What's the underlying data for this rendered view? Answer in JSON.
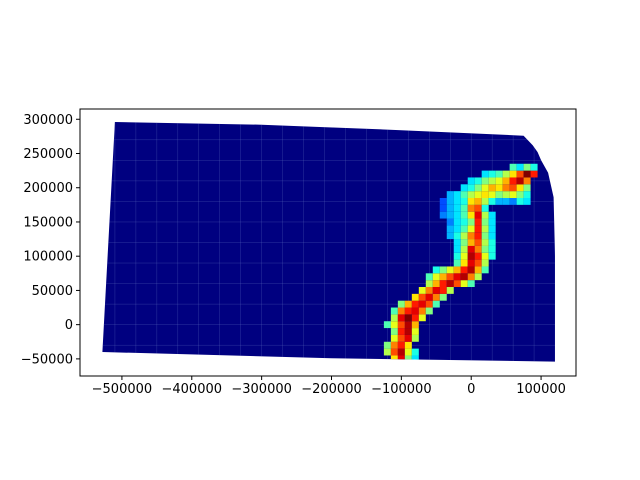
{
  "chart_data": {
    "type": "heatmap",
    "title": "",
    "xlabel": "",
    "ylabel": "",
    "xlim": [
      -560000,
      150000
    ],
    "ylim": [
      -75000,
      315000
    ],
    "x_ticks": [
      -500000,
      -400000,
      -300000,
      -200000,
      -100000,
      0,
      100000
    ],
    "x_tick_labels": [
      "−500000",
      "−400000",
      "−300000",
      "−200000",
      "−100000",
      "0",
      "100000"
    ],
    "y_ticks": [
      -50000,
      0,
      50000,
      100000,
      150000,
      200000,
      250000,
      300000
    ],
    "y_tick_labels": [
      "−50000",
      "0",
      "50000",
      "100000",
      "150000",
      "200000",
      "250000",
      "300000"
    ],
    "grid": false,
    "colormap": "jet",
    "background_color": "#000080",
    "boundary_color": "#5f6fc0",
    "region_outline": [
      [
        -510000,
        296000
      ],
      [
        -300000,
        292000
      ],
      [
        -100000,
        284000
      ],
      [
        75000,
        276000
      ],
      [
        88000,
        262000
      ],
      [
        95000,
        252000
      ],
      [
        100000,
        240000
      ],
      [
        110000,
        222000
      ],
      [
        118000,
        186000
      ],
      [
        120000,
        100000
      ],
      [
        120000,
        -54000
      ],
      [
        -200000,
        -49000
      ],
      [
        -528000,
        -40000
      ]
    ],
    "cell_size": 10000,
    "cells": [
      {
        "x": -110000,
        "y": -50000,
        "v": 0.65
      },
      {
        "x": -100000,
        "y": -50000,
        "v": 0.9
      },
      {
        "x": -90000,
        "y": -50000,
        "v": 0.5
      },
      {
        "x": -80000,
        "y": -50000,
        "v": 0.35
      },
      {
        "x": -120000,
        "y": -40000,
        "v": 0.55
      },
      {
        "x": -110000,
        "y": -40000,
        "v": 0.8
      },
      {
        "x": -100000,
        "y": -40000,
        "v": 0.95
      },
      {
        "x": -90000,
        "y": -40000,
        "v": 0.6
      },
      {
        "x": -80000,
        "y": -40000,
        "v": 0.4
      },
      {
        "x": -120000,
        "y": -30000,
        "v": 0.5
      },
      {
        "x": -110000,
        "y": -30000,
        "v": 0.75
      },
      {
        "x": -100000,
        "y": -30000,
        "v": 0.85
      },
      {
        "x": -90000,
        "y": -30000,
        "v": 0.65
      },
      {
        "x": -110000,
        "y": -20000,
        "v": 0.6
      },
      {
        "x": -100000,
        "y": -20000,
        "v": 0.8
      },
      {
        "x": -90000,
        "y": -20000,
        "v": 0.9
      },
      {
        "x": -80000,
        "y": -20000,
        "v": 0.55
      },
      {
        "x": -110000,
        "y": -10000,
        "v": 0.5
      },
      {
        "x": -100000,
        "y": -10000,
        "v": 0.85
      },
      {
        "x": -90000,
        "y": -10000,
        "v": 0.95
      },
      {
        "x": -80000,
        "y": -10000,
        "v": 0.6
      },
      {
        "x": -120000,
        "y": 0,
        "v": 0.45
      },
      {
        "x": -110000,
        "y": 0,
        "v": 0.6
      },
      {
        "x": -100000,
        "y": 0,
        "v": 0.8
      },
      {
        "x": -90000,
        "y": 0,
        "v": 0.95
      },
      {
        "x": -80000,
        "y": 0,
        "v": 0.7
      },
      {
        "x": -110000,
        "y": 10000,
        "v": 0.55
      },
      {
        "x": -100000,
        "y": 10000,
        "v": 0.9
      },
      {
        "x": -90000,
        "y": 10000,
        "v": 1.0
      },
      {
        "x": -80000,
        "y": 10000,
        "v": 0.85
      },
      {
        "x": -70000,
        "y": 10000,
        "v": 0.6
      },
      {
        "x": -110000,
        "y": 20000,
        "v": 0.45
      },
      {
        "x": -100000,
        "y": 20000,
        "v": 0.75
      },
      {
        "x": -90000,
        "y": 20000,
        "v": 0.85
      },
      {
        "x": -80000,
        "y": 20000,
        "v": 0.9
      },
      {
        "x": -70000,
        "y": 20000,
        "v": 0.75
      },
      {
        "x": -60000,
        "y": 20000,
        "v": 0.5
      },
      {
        "x": -100000,
        "y": 30000,
        "v": 0.5
      },
      {
        "x": -90000,
        "y": 30000,
        "v": 0.7
      },
      {
        "x": -80000,
        "y": 30000,
        "v": 0.85
      },
      {
        "x": -70000,
        "y": 30000,
        "v": 0.9
      },
      {
        "x": -60000,
        "y": 30000,
        "v": 0.8
      },
      {
        "x": -50000,
        "y": 30000,
        "v": 0.45
      },
      {
        "x": -80000,
        "y": 40000,
        "v": 0.65
      },
      {
        "x": -70000,
        "y": 40000,
        "v": 0.8
      },
      {
        "x": -60000,
        "y": 40000,
        "v": 0.9
      },
      {
        "x": -50000,
        "y": 40000,
        "v": 0.75
      },
      {
        "x": -40000,
        "y": 40000,
        "v": 0.5
      },
      {
        "x": -70000,
        "y": 50000,
        "v": 0.6
      },
      {
        "x": -60000,
        "y": 50000,
        "v": 0.75
      },
      {
        "x": -50000,
        "y": 50000,
        "v": 0.9
      },
      {
        "x": -40000,
        "y": 50000,
        "v": 0.85
      },
      {
        "x": -30000,
        "y": 50000,
        "v": 0.55
      },
      {
        "x": -60000,
        "y": 60000,
        "v": 0.55
      },
      {
        "x": -50000,
        "y": 60000,
        "v": 0.7
      },
      {
        "x": -40000,
        "y": 60000,
        "v": 0.85
      },
      {
        "x": -30000,
        "y": 60000,
        "v": 0.95
      },
      {
        "x": -20000,
        "y": 60000,
        "v": 0.8
      },
      {
        "x": -10000,
        "y": 60000,
        "v": 0.6
      },
      {
        "x": 0,
        "y": 60000,
        "v": 0.45
      },
      {
        "x": -60000,
        "y": 70000,
        "v": 0.45
      },
      {
        "x": -50000,
        "y": 70000,
        "v": 0.6
      },
      {
        "x": -40000,
        "y": 70000,
        "v": 0.7
      },
      {
        "x": -30000,
        "y": 70000,
        "v": 0.8
      },
      {
        "x": -20000,
        "y": 70000,
        "v": 0.9
      },
      {
        "x": -10000,
        "y": 70000,
        "v": 0.95
      },
      {
        "x": 0,
        "y": 70000,
        "v": 0.75
      },
      {
        "x": 10000,
        "y": 70000,
        "v": 0.55
      },
      {
        "x": -50000,
        "y": 80000,
        "v": 0.4
      },
      {
        "x": -40000,
        "y": 80000,
        "v": 0.5
      },
      {
        "x": -30000,
        "y": 80000,
        "v": 0.6
      },
      {
        "x": -20000,
        "y": 80000,
        "v": 0.7
      },
      {
        "x": -10000,
        "y": 80000,
        "v": 0.85
      },
      {
        "x": 0,
        "y": 80000,
        "v": 0.95
      },
      {
        "x": 10000,
        "y": 80000,
        "v": 0.7
      },
      {
        "x": 20000,
        "y": 80000,
        "v": 0.45
      },
      {
        "x": -20000,
        "y": 90000,
        "v": 0.45
      },
      {
        "x": -10000,
        "y": 90000,
        "v": 0.65
      },
      {
        "x": 0,
        "y": 90000,
        "v": 0.9
      },
      {
        "x": 10000,
        "y": 90000,
        "v": 0.8
      },
      {
        "x": 20000,
        "y": 90000,
        "v": 0.55
      },
      {
        "x": -20000,
        "y": 100000,
        "v": 0.4
      },
      {
        "x": -10000,
        "y": 100000,
        "v": 0.6
      },
      {
        "x": 0,
        "y": 100000,
        "v": 0.95
      },
      {
        "x": 10000,
        "y": 100000,
        "v": 0.85
      },
      {
        "x": 20000,
        "y": 100000,
        "v": 0.6
      },
      {
        "x": 30000,
        "y": 100000,
        "v": 0.4
      },
      {
        "x": -20000,
        "y": 110000,
        "v": 0.35
      },
      {
        "x": -10000,
        "y": 110000,
        "v": 0.55
      },
      {
        "x": 0,
        "y": 110000,
        "v": 0.9
      },
      {
        "x": 10000,
        "y": 110000,
        "v": 0.75
      },
      {
        "x": 20000,
        "y": 110000,
        "v": 0.5
      },
      {
        "x": 30000,
        "y": 110000,
        "v": 0.4
      },
      {
        "x": -20000,
        "y": 120000,
        "v": 0.35
      },
      {
        "x": -10000,
        "y": 120000,
        "v": 0.5
      },
      {
        "x": 0,
        "y": 120000,
        "v": 0.7
      },
      {
        "x": 10000,
        "y": 120000,
        "v": 0.8
      },
      {
        "x": 20000,
        "y": 120000,
        "v": 0.55
      },
      {
        "x": 30000,
        "y": 120000,
        "v": 0.4
      },
      {
        "x": -30000,
        "y": 130000,
        "v": 0.3
      },
      {
        "x": -20000,
        "y": 130000,
        "v": 0.4
      },
      {
        "x": -10000,
        "y": 130000,
        "v": 0.55
      },
      {
        "x": 0,
        "y": 130000,
        "v": 0.75
      },
      {
        "x": 10000,
        "y": 130000,
        "v": 0.85
      },
      {
        "x": 20000,
        "y": 130000,
        "v": 0.5
      },
      {
        "x": 30000,
        "y": 130000,
        "v": 0.35
      },
      {
        "x": -30000,
        "y": 140000,
        "v": 0.3
      },
      {
        "x": -20000,
        "y": 140000,
        "v": 0.35
      },
      {
        "x": -10000,
        "y": 140000,
        "v": 0.45
      },
      {
        "x": 0,
        "y": 140000,
        "v": 0.6
      },
      {
        "x": 10000,
        "y": 140000,
        "v": 0.85
      },
      {
        "x": 20000,
        "y": 140000,
        "v": 0.55
      },
      {
        "x": 30000,
        "y": 140000,
        "v": 0.35
      },
      {
        "x": -30000,
        "y": 150000,
        "v": 0.25
      },
      {
        "x": -20000,
        "y": 150000,
        "v": 0.35
      },
      {
        "x": -10000,
        "y": 150000,
        "v": 0.4
      },
      {
        "x": 0,
        "y": 150000,
        "v": 0.5
      },
      {
        "x": 10000,
        "y": 150000,
        "v": 0.85
      },
      {
        "x": 20000,
        "y": 150000,
        "v": 0.5
      },
      {
        "x": 30000,
        "y": 150000,
        "v": 0.35
      },
      {
        "x": -40000,
        "y": 160000,
        "v": 0.25
      },
      {
        "x": -30000,
        "y": 160000,
        "v": 0.3
      },
      {
        "x": -20000,
        "y": 160000,
        "v": 0.35
      },
      {
        "x": -10000,
        "y": 160000,
        "v": 0.45
      },
      {
        "x": 0,
        "y": 160000,
        "v": 0.65
      },
      {
        "x": 10000,
        "y": 160000,
        "v": 0.9
      },
      {
        "x": 20000,
        "y": 160000,
        "v": 0.55
      },
      {
        "x": 30000,
        "y": 160000,
        "v": 0.35
      },
      {
        "x": -40000,
        "y": 170000,
        "v": 0.2
      },
      {
        "x": -30000,
        "y": 170000,
        "v": 0.3
      },
      {
        "x": -20000,
        "y": 170000,
        "v": 0.35
      },
      {
        "x": -10000,
        "y": 170000,
        "v": 0.45
      },
      {
        "x": 0,
        "y": 170000,
        "v": 0.75
      },
      {
        "x": 10000,
        "y": 170000,
        "v": 0.8
      },
      {
        "x": 20000,
        "y": 170000,
        "v": 0.4
      },
      {
        "x": -40000,
        "y": 180000,
        "v": 0.2
      },
      {
        "x": -30000,
        "y": 180000,
        "v": 0.3
      },
      {
        "x": -20000,
        "y": 180000,
        "v": 0.35
      },
      {
        "x": -10000,
        "y": 180000,
        "v": 0.4
      },
      {
        "x": 0,
        "y": 180000,
        "v": 0.65
      },
      {
        "x": 10000,
        "y": 180000,
        "v": 0.7
      },
      {
        "x": 20000,
        "y": 180000,
        "v": 0.55
      },
      {
        "x": 30000,
        "y": 180000,
        "v": 0.4
      },
      {
        "x": 40000,
        "y": 180000,
        "v": 0.3
      },
      {
        "x": 50000,
        "y": 180000,
        "v": 0.3
      },
      {
        "x": 60000,
        "y": 180000,
        "v": 0.25
      },
      {
        "x": 70000,
        "y": 180000,
        "v": 0.4
      },
      {
        "x": 80000,
        "y": 180000,
        "v": 0.35
      },
      {
        "x": -30000,
        "y": 190000,
        "v": 0.3
      },
      {
        "x": -20000,
        "y": 190000,
        "v": 0.35
      },
      {
        "x": -10000,
        "y": 190000,
        "v": 0.45
      },
      {
        "x": 0,
        "y": 190000,
        "v": 0.55
      },
      {
        "x": 10000,
        "y": 190000,
        "v": 0.6
      },
      {
        "x": 20000,
        "y": 190000,
        "v": 0.65
      },
      {
        "x": 30000,
        "y": 190000,
        "v": 0.6
      },
      {
        "x": 40000,
        "y": 190000,
        "v": 0.5
      },
      {
        "x": 50000,
        "y": 190000,
        "v": 0.55
      },
      {
        "x": 60000,
        "y": 190000,
        "v": 0.6
      },
      {
        "x": 70000,
        "y": 190000,
        "v": 0.5
      },
      {
        "x": 80000,
        "y": 190000,
        "v": 0.4
      },
      {
        "x": -10000,
        "y": 200000,
        "v": 0.35
      },
      {
        "x": 0,
        "y": 200000,
        "v": 0.4
      },
      {
        "x": 10000,
        "y": 200000,
        "v": 0.5
      },
      {
        "x": 20000,
        "y": 200000,
        "v": 0.6
      },
      {
        "x": 30000,
        "y": 200000,
        "v": 0.7
      },
      {
        "x": 40000,
        "y": 200000,
        "v": 0.65
      },
      {
        "x": 50000,
        "y": 200000,
        "v": 0.75
      },
      {
        "x": 60000,
        "y": 200000,
        "v": 0.8
      },
      {
        "x": 70000,
        "y": 200000,
        "v": 0.65
      },
      {
        "x": 80000,
        "y": 200000,
        "v": 0.5
      },
      {
        "x": 0,
        "y": 210000,
        "v": 0.35
      },
      {
        "x": 10000,
        "y": 210000,
        "v": 0.4
      },
      {
        "x": 20000,
        "y": 210000,
        "v": 0.5
      },
      {
        "x": 30000,
        "y": 210000,
        "v": 0.55
      },
      {
        "x": 40000,
        "y": 210000,
        "v": 0.6
      },
      {
        "x": 50000,
        "y": 210000,
        "v": 0.7
      },
      {
        "x": 60000,
        "y": 210000,
        "v": 0.85
      },
      {
        "x": 70000,
        "y": 210000,
        "v": 0.95
      },
      {
        "x": 80000,
        "y": 210000,
        "v": 0.75
      },
      {
        "x": 20000,
        "y": 220000,
        "v": 0.35
      },
      {
        "x": 30000,
        "y": 220000,
        "v": 0.4
      },
      {
        "x": 40000,
        "y": 220000,
        "v": 0.45
      },
      {
        "x": 50000,
        "y": 220000,
        "v": 0.55
      },
      {
        "x": 60000,
        "y": 220000,
        "v": 0.65
      },
      {
        "x": 70000,
        "y": 220000,
        "v": 0.8
      },
      {
        "x": 80000,
        "y": 220000,
        "v": 1.0
      },
      {
        "x": 90000,
        "y": 220000,
        "v": 0.85
      },
      {
        "x": 60000,
        "y": 230000,
        "v": 0.45
      },
      {
        "x": 70000,
        "y": 230000,
        "v": 0.35
      },
      {
        "x": 80000,
        "y": 230000,
        "v": 0.5
      },
      {
        "x": 90000,
        "y": 230000,
        "v": 0.4
      }
    ]
  }
}
